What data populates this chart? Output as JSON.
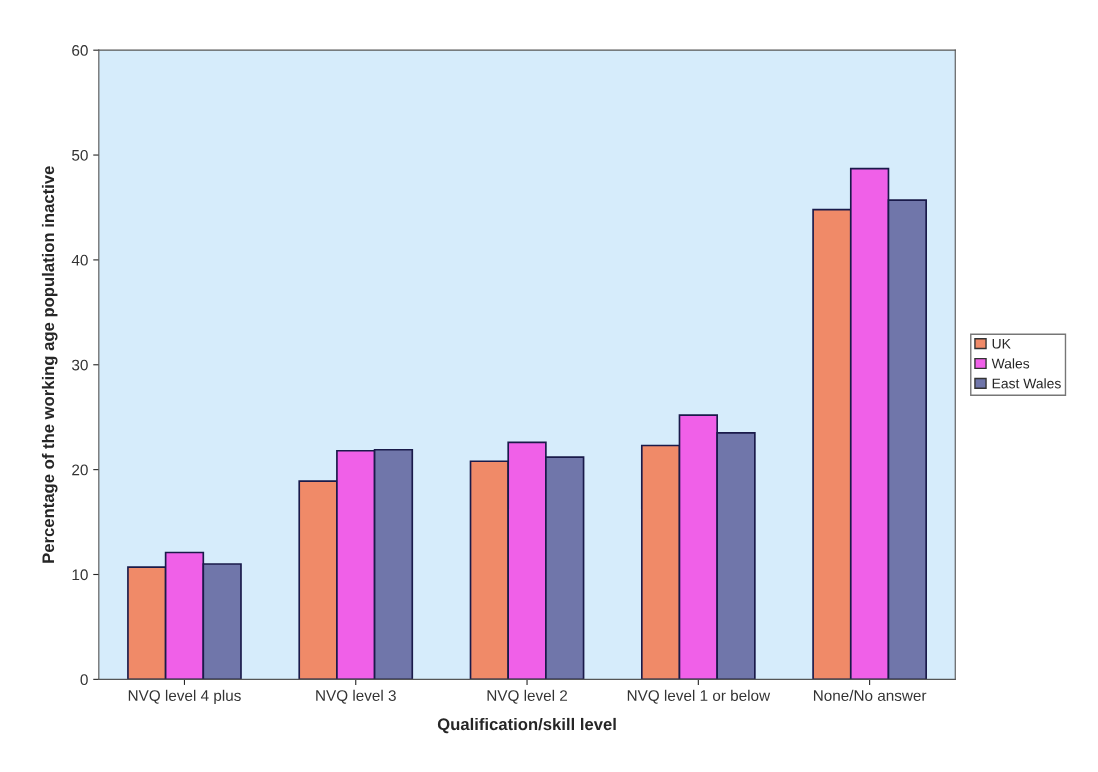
{
  "chart_data": {
    "type": "bar",
    "xlabel": "Qualification/skill level",
    "ylabel": "Percentage of the working age population inactive",
    "categories": [
      "NVQ level 4 plus",
      "NVQ level 3",
      "NVQ level 2",
      "NVQ level 1 or below",
      "None/No answer"
    ],
    "series": [
      {
        "name": "UK",
        "color": "#f08a68",
        "values": [
          10.7,
          18.9,
          20.8,
          22.3,
          44.8
        ]
      },
      {
        "name": "Wales",
        "color": "#f060e8",
        "values": [
          12.1,
          21.8,
          22.6,
          25.2,
          48.7
        ]
      },
      {
        "name": "East Wales",
        "color": "#7076aa",
        "values": [
          11.0,
          21.9,
          21.2,
          23.5,
          45.7
        ]
      }
    ],
    "ylim": [
      0,
      60
    ],
    "yticks": [
      0,
      10,
      20,
      30,
      40,
      50,
      60
    ],
    "grid": false,
    "legend": "right"
  }
}
